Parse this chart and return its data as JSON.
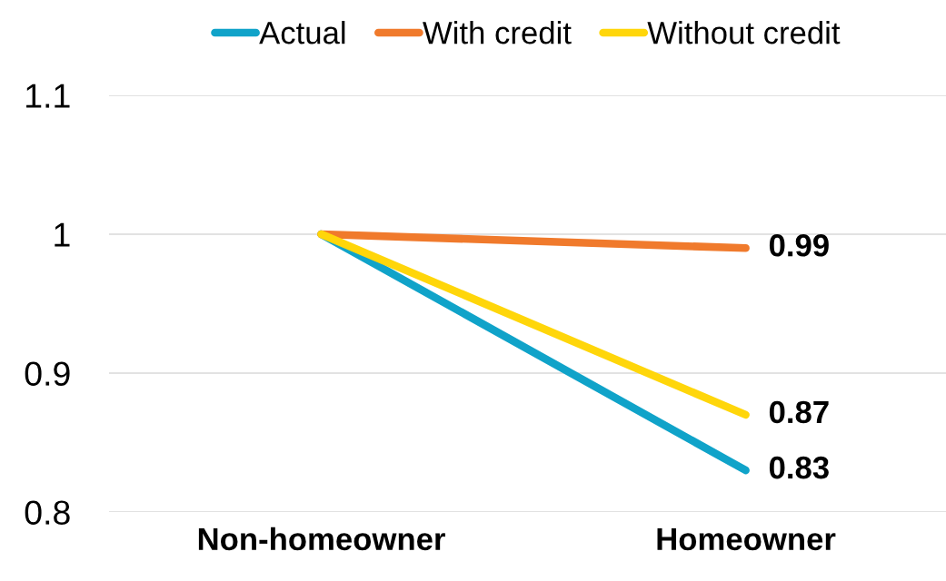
{
  "chart_data": {
    "type": "line",
    "categories": [
      "Non-homeowner",
      "Homeowner"
    ],
    "series": [
      {
        "name": "Actual",
        "color": "#10a3c9",
        "values": [
          1,
          0.83
        ],
        "value_labels": [
          null,
          "0.83"
        ]
      },
      {
        "name": "With credit",
        "color": "#f07a2c",
        "values": [
          1,
          0.99
        ],
        "value_labels": [
          null,
          "0.99"
        ]
      },
      {
        "name": "Without credit",
        "color": "#ffd60a",
        "values": [
          1,
          0.87
        ],
        "value_labels": [
          null,
          "0.87"
        ]
      }
    ],
    "ylim": [
      0.8,
      1.1
    ],
    "yticks": [
      0.8,
      0.9,
      1,
      1.1
    ],
    "grid": "y",
    "legend": "top",
    "marker": "none",
    "line_style": "solid"
  }
}
